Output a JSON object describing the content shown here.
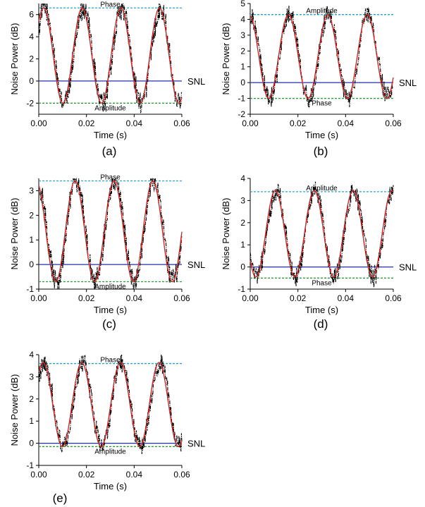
{
  "chart_data": [
    {
      "type": "line",
      "panel_label": "(a)",
      "xlabel": "Time (s)",
      "ylabel": "Noise Power (dB)",
      "xlim": [
        0.0,
        0.06
      ],
      "ylim": [
        -3,
        7
      ],
      "xticks": [
        "0.00",
        "0.02",
        "0.04",
        "0.06"
      ],
      "yticks": [
        "-2",
        "0",
        "2",
        "4",
        "6"
      ],
      "top_level": 6.6,
      "top_label": "Phase",
      "bottom_level": -2.0,
      "bottom_label": "Amplitude",
      "snl_level": 0.0,
      "snl_label": "SNL",
      "fit": {
        "center": 2.3,
        "amplitude": 4.3,
        "period": 0.0162,
        "peak_time": 0.002
      },
      "colors": {
        "measured": "#000000",
        "fit": "#d42a2a",
        "snl": "#2030b0",
        "top_line": "#2aa3c7",
        "bottom_line": "#2f9a3a"
      },
      "legend": "none",
      "grid": false
    },
    {
      "type": "line",
      "panel_label": "(b)",
      "xlabel": "Time (s)",
      "ylabel": "Noise Power (dB)",
      "xlim": [
        0.0,
        0.06
      ],
      "ylim": [
        -2,
        5
      ],
      "xticks": [
        "0.00",
        "0.02",
        "0.04",
        "0.06"
      ],
      "yticks": [
        "-2",
        "-1",
        "0",
        "1",
        "2",
        "3",
        "4",
        "5"
      ],
      "top_level": 4.3,
      "top_label": "Amplitude",
      "bottom_level": -1.0,
      "bottom_label": "Phase",
      "snl_level": 0.0,
      "snl_label": "SNL",
      "fit": {
        "center": 1.65,
        "amplitude": 2.65,
        "period": 0.0165,
        "peak_time": 0.016
      },
      "colors": {
        "measured": "#000000",
        "fit": "#d42a2a",
        "snl": "#2030b0",
        "top_line": "#2aa3c7",
        "bottom_line": "#2f9a3a"
      },
      "legend": "none",
      "grid": false
    },
    {
      "type": "line",
      "panel_label": "(c)",
      "xlabel": "Time (s)",
      "ylabel": "Noise Power (dB)",
      "xlim": [
        0.0,
        0.06
      ],
      "ylim": [
        -1,
        3.5
      ],
      "xticks": [
        "0.00",
        "0.02",
        "0.04",
        "0.06"
      ],
      "yticks": [
        "-1",
        "0",
        "1",
        "2",
        "3"
      ],
      "top_level": 3.4,
      "top_label": "Phase",
      "bottom_level": -0.7,
      "bottom_label": "Amplitude",
      "snl_level": 0.0,
      "snl_label": "SNL",
      "fit": {
        "center": 1.35,
        "amplitude": 2.05,
        "period": 0.0163,
        "peak_time": 0.0152
      },
      "colors": {
        "measured": "#000000",
        "fit": "#d42a2a",
        "snl": "#2030b0",
        "top_line": "#2aa3c7",
        "bottom_line": "#2f9a3a"
      },
      "legend": "none",
      "grid": false
    },
    {
      "type": "line",
      "panel_label": "(d)",
      "xlabel": "Time (s)",
      "ylabel": "Noise Power (dB)",
      "xlim": [
        0.0,
        0.06
      ],
      "ylim": [
        -1,
        4
      ],
      "xticks": [
        "0.00",
        "0.02",
        "0.04",
        "0.06"
      ],
      "yticks": [
        "-1",
        "0",
        "1",
        "2",
        "3",
        "4"
      ],
      "top_level": 3.4,
      "top_label": "Amplitude",
      "bottom_level": -0.5,
      "bottom_label": "Phase",
      "snl_level": 0.0,
      "snl_label": "SNL",
      "fit": {
        "center": 1.5,
        "amplitude": 1.95,
        "period": 0.0163,
        "peak_time": 0.0105
      },
      "colors": {
        "measured": "#000000",
        "fit": "#d42a2a",
        "snl": "#2030b0",
        "top_line": "#2aa3c7",
        "bottom_line": "#2f9a3a"
      },
      "legend": "none",
      "grid": false
    },
    {
      "type": "line",
      "panel_label": "(e)",
      "xlabel": "Time (s)",
      "ylabel": "Noise Power (dB)",
      "xlim": [
        0.0,
        0.06
      ],
      "ylim": [
        -1,
        4
      ],
      "xticks": [
        "0.00",
        "0.02",
        "0.04",
        "0.06"
      ],
      "yticks": [
        "-1",
        "0",
        "1",
        "2",
        "3",
        "4"
      ],
      "top_level": 3.6,
      "top_label": "Phase",
      "bottom_level": -0.15,
      "bottom_label": "Amplitude",
      "snl_level": 0.0,
      "snl_label": "SNL",
      "fit": {
        "center": 1.75,
        "amplitude": 1.9,
        "period": 0.0162,
        "peak_time": 0.0018
      },
      "colors": {
        "measured": "#000000",
        "fit": "#d42a2a",
        "snl": "#2030b0",
        "top_line": "#2aa3c7",
        "bottom_line": "#2f9a3a"
      },
      "legend": "none",
      "grid": false
    }
  ]
}
